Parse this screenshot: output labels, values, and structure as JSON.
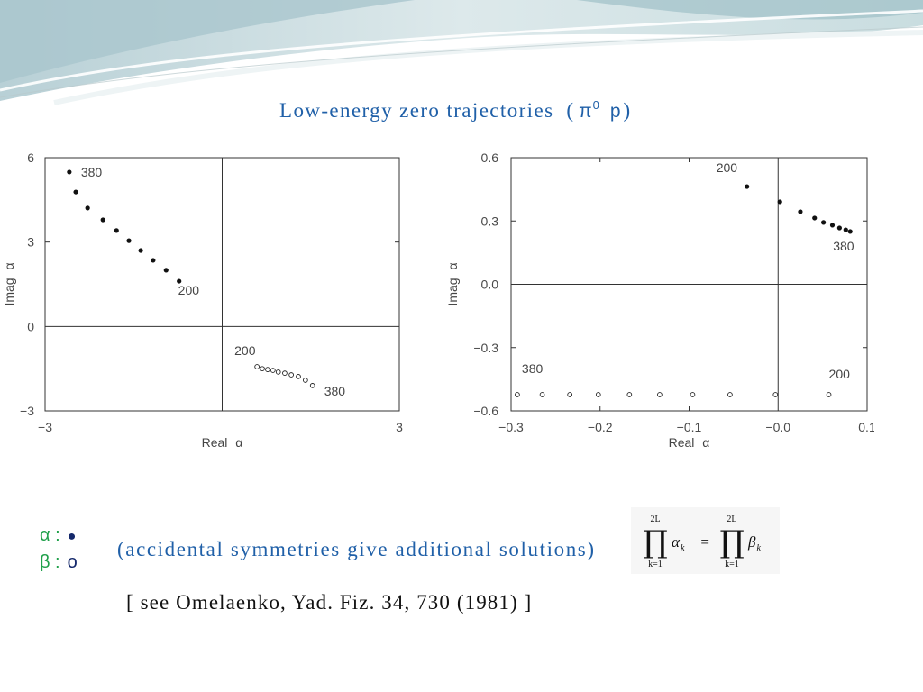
{
  "header": {
    "title_text": "Low-energy zero trajectories",
    "title_open": "(",
    "title_pi": "π",
    "title_sup": "0",
    "title_p": "p",
    "title_close": ")"
  },
  "legend": {
    "alpha": {
      "symbol": "α :",
      "marker": "●"
    },
    "beta": {
      "symbol": "β :",
      "marker": "o"
    }
  },
  "note": "(accidental symmetries give additional solutions)",
  "formula": {
    "left": {
      "upper": "2L",
      "operator": "∏",
      "lower": "k=1",
      "term": "α",
      "sub": "k"
    },
    "equals": "=",
    "right": {
      "upper": "2L",
      "operator": "∏",
      "lower": "k=1",
      "term": "β",
      "sub": "k"
    }
  },
  "citation": "[ see Omelaenko, Yad. Fiz. 34, 730 (1981) ]",
  "colors": {
    "title": "#2060a8",
    "note": "#2060a8",
    "legend_symbol": "#1fa04a",
    "legend_marker": "#14286b",
    "citation": "#111111",
    "axis": "#333333",
    "filled_marker": "#111111",
    "open_marker": "#222222",
    "wave_dark": "#a9c6cd",
    "wave_light": "#d6e4e7"
  },
  "chart_data": [
    {
      "type": "scatter",
      "xlabel": "Real α",
      "ylabel": "Imag α",
      "xlim": [
        -3,
        3
      ],
      "ylim": [
        -3,
        6
      ],
      "xticks": [
        {
          "value": -3,
          "label": "−3"
        },
        {
          "value": 3,
          "label": "3"
        }
      ],
      "yticks": [
        {
          "value": -3,
          "label": "−3"
        },
        {
          "value": 0,
          "label": "0"
        },
        {
          "value": 3,
          "label": "3"
        },
        {
          "value": 6,
          "label": "6"
        }
      ],
      "zero_lines": true,
      "grid": false,
      "series": [
        {
          "name": "α",
          "marker": "filled",
          "points": [
            [
              -2.59,
              5.49
            ],
            [
              -2.48,
              4.78
            ],
            [
              -2.28,
              4.21
            ],
            [
              -2.02,
              3.79
            ],
            [
              -1.79,
              3.41
            ],
            [
              -1.58,
              3.05
            ],
            [
              -1.38,
              2.7
            ],
            [
              -1.17,
              2.35
            ],
            [
              -0.95,
              2.0
            ],
            [
              -0.73,
              1.61
            ]
          ],
          "labels": [
            {
              "text": "380",
              "point": 0
            },
            {
              "text": "200",
              "point": 9
            }
          ]
        },
        {
          "name": "β",
          "marker": "open",
          "points": [
            [
              0.59,
              -1.43
            ],
            [
              0.68,
              -1.5
            ],
            [
              0.77,
              -1.53
            ],
            [
              0.86,
              -1.56
            ],
            [
              0.95,
              -1.62
            ],
            [
              1.06,
              -1.66
            ],
            [
              1.17,
              -1.72
            ],
            [
              1.29,
              -1.78
            ],
            [
              1.41,
              -1.91
            ],
            [
              1.53,
              -2.1
            ]
          ],
          "labels": [
            {
              "text": "200",
              "point": 0
            },
            {
              "text": "380",
              "point": 9
            }
          ]
        }
      ]
    },
    {
      "type": "scatter",
      "xlabel": "Real α",
      "ylabel": "Imag α",
      "xlim": [
        -0.3,
        0.1
      ],
      "ylim": [
        -0.6,
        0.6
      ],
      "xticks": [
        {
          "value": -0.3,
          "label": "−0.3"
        },
        {
          "value": -0.2,
          "label": "−0.2"
        },
        {
          "value": -0.1,
          "label": "−0.1"
        },
        {
          "value": 0,
          "label": "−0.0"
        },
        {
          "value": 0.1,
          "label": "0.1"
        }
      ],
      "yticks": [
        {
          "value": -0.6,
          "label": "−0.6"
        },
        {
          "value": -0.3,
          "label": "−0.3"
        },
        {
          "value": 0,
          "label": "0.0"
        },
        {
          "value": 0.3,
          "label": "0.3"
        },
        {
          "value": 0.6,
          "label": "0.6"
        }
      ],
      "zero_lines": true,
      "grid": false,
      "series": [
        {
          "name": "α",
          "marker": "filled",
          "points": [
            [
              -0.035,
              0.463
            ],
            [
              0.002,
              0.391
            ],
            [
              0.025,
              0.344
            ],
            [
              0.041,
              0.314
            ],
            [
              0.051,
              0.293
            ],
            [
              0.061,
              0.28
            ],
            [
              0.069,
              0.267
            ],
            [
              0.076,
              0.258
            ],
            [
              0.081,
              0.25
            ]
          ],
          "labels": [
            {
              "text": "200",
              "point": 0
            },
            {
              "text": "380",
              "point": 8
            }
          ]
        },
        {
          "name": "β",
          "marker": "open",
          "points": [
            [
              -0.293,
              -0.523
            ],
            [
              -0.265,
              -0.523
            ],
            [
              -0.234,
              -0.523
            ],
            [
              -0.202,
              -0.523
            ],
            [
              -0.167,
              -0.523
            ],
            [
              -0.133,
              -0.523
            ],
            [
              -0.096,
              -0.523
            ],
            [
              -0.054,
              -0.523
            ],
            [
              -0.003,
              -0.523
            ],
            [
              0.057,
              -0.523
            ]
          ],
          "labels": [
            {
              "text": "380",
              "point": 0
            },
            {
              "text": "200",
              "point": 9
            }
          ]
        }
      ]
    }
  ]
}
